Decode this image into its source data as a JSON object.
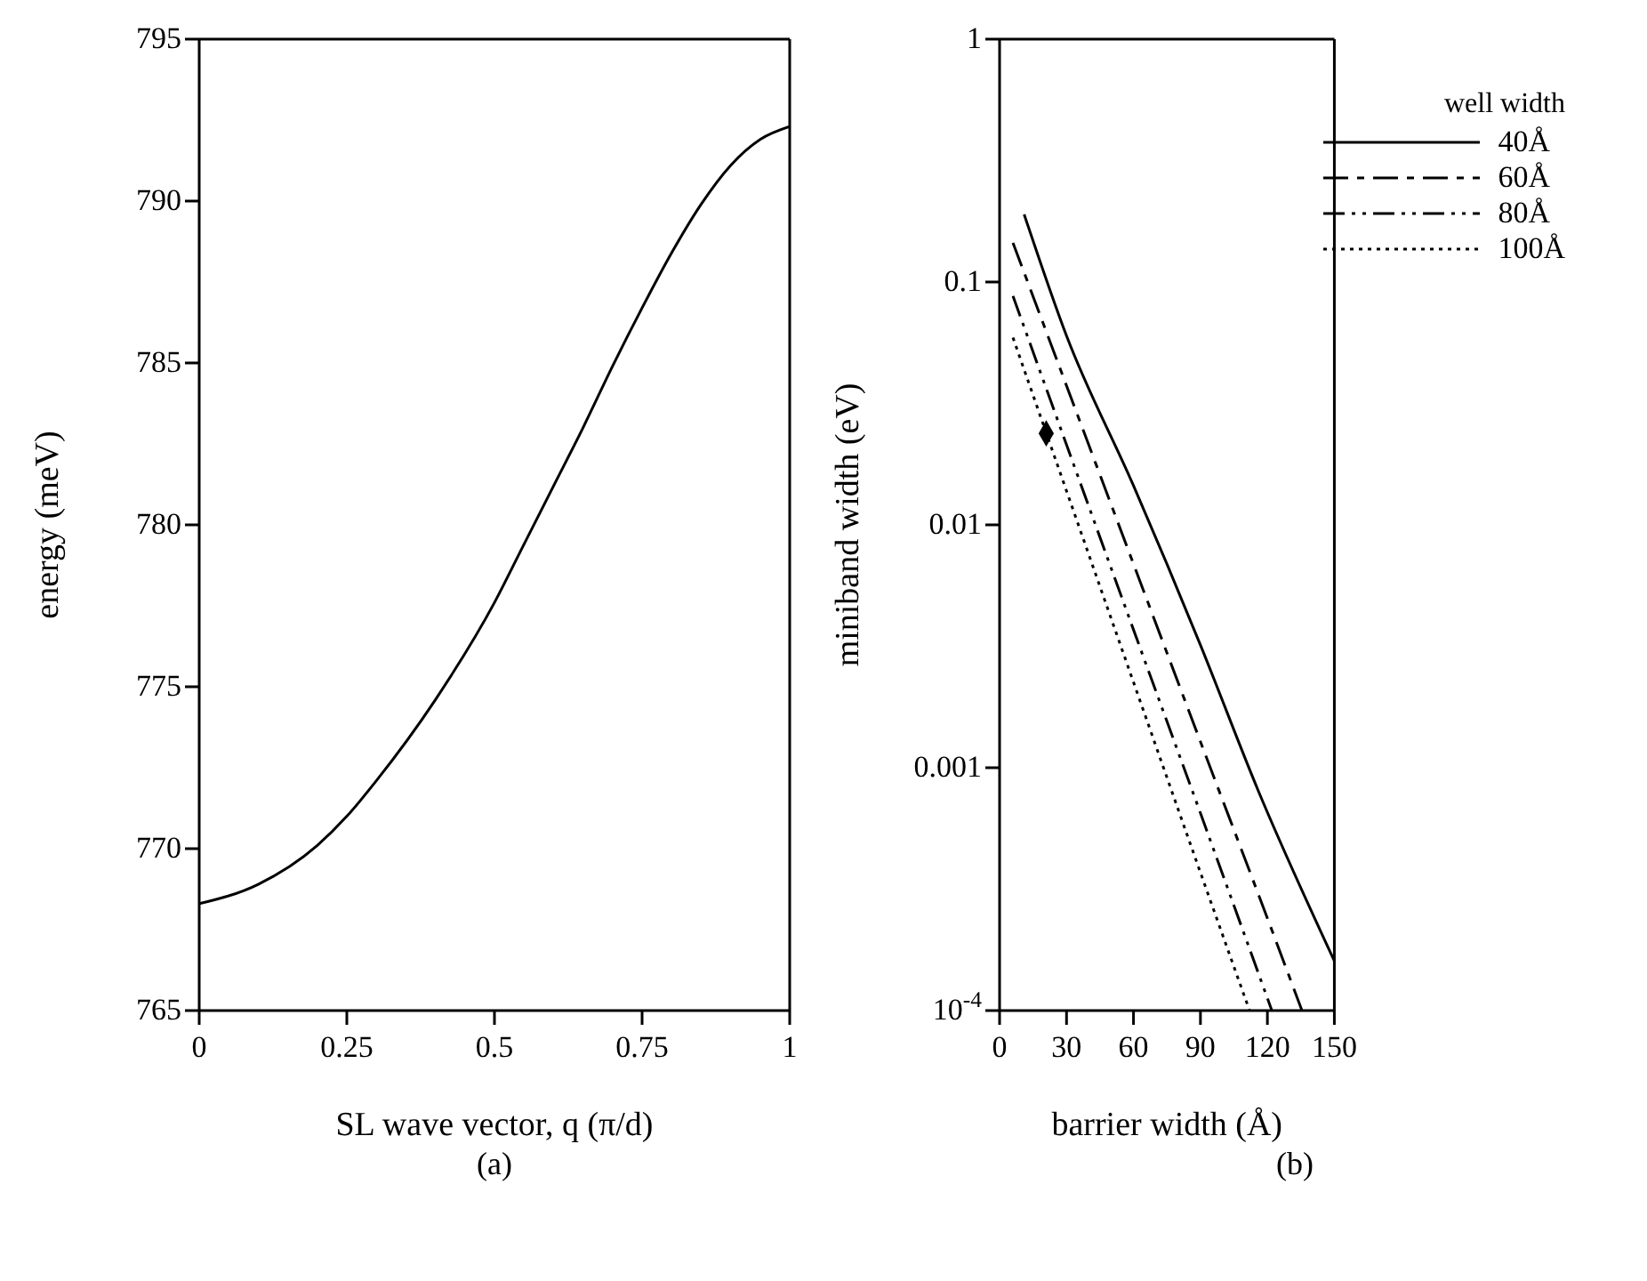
{
  "chart_data": [
    {
      "type": "line",
      "xlabel": "SL wave vector, q  (π/d)",
      "ylabel": "energy (meV)",
      "annotations": [
        "(a)"
      ],
      "xlim": [
        0,
        1
      ],
      "xticks": [
        0,
        0.25,
        0.5,
        0.75,
        1
      ],
      "ylim": [
        765,
        795
      ],
      "yticks": [
        765,
        770,
        775,
        780,
        785,
        790,
        795
      ],
      "grid": false,
      "legend": false,
      "marker": "none",
      "series": [
        {
          "color": "#000000",
          "line_style": "solid",
          "x": [
            0,
            0.1,
            0.2,
            0.25,
            0.3,
            0.4,
            0.5,
            0.55,
            0.6,
            0.65,
            0.7,
            0.75,
            0.8,
            0.85,
            0.9,
            0.95,
            1
          ],
          "values": [
            768.3,
            768.9,
            770.1,
            771,
            772.1,
            774.6,
            777.6,
            779.4,
            781.2,
            783,
            784.9,
            786.7,
            788.4,
            789.9,
            791.1,
            791.9,
            792.3
          ]
        }
      ]
    },
    {
      "type": "line",
      "xlabel": "barrier width (Å)",
      "ylabel": "miniband width (eV)",
      "annotations": [
        "(b)"
      ],
      "legend_title": "well width",
      "legend": "top right",
      "log": "y",
      "grid": false,
      "marker": "none",
      "xlim": [
        0,
        150
      ],
      "xticks": [
        0,
        30,
        60,
        90,
        120,
        150
      ],
      "ylim": [
        0.0001,
        1
      ],
      "yticks": [
        {
          "value": 0.0001,
          "label": "10$^{-4}$"
        },
        0.001,
        0.01,
        0.1,
        1
      ],
      "series": [
        {
          "name": "40Å",
          "color": "#000000",
          "line_style": "solid",
          "x": [
            11,
            30,
            60,
            90,
            116,
            150
          ],
          "values": [
            0.19,
            0.06,
            0.0145,
            0.0032,
            0.0008,
            0.00016
          ]
        },
        {
          "name": "60Å",
          "color": "#000000",
          "line_style": "dashed",
          "x": [
            6,
            60,
            90,
            120,
            135.5
          ],
          "values": [
            0.145,
            0.0069,
            0.00128,
            0.00024,
            0.0001
          ]
        },
        {
          "name": "80Å",
          "color": "#000000",
          "line_style": "dashdot",
          "x": [
            6,
            60,
            90,
            122
          ],
          "values": [
            0.0875,
            0.0037,
            0.00065,
            0.0001
          ]
        },
        {
          "name": "100Å",
          "color": "#000000",
          "line_style": "dotted",
          "x": [
            6,
            60,
            90,
            112
          ],
          "values": [
            0.059,
            0.00225,
            0.00037,
            0.0001
          ]
        },
        {
          "type": "scatter",
          "marker": "diamond",
          "color": "#000000",
          "x": [
            20.9
          ],
          "values": [
            0.0238
          ]
        }
      ]
    }
  ]
}
